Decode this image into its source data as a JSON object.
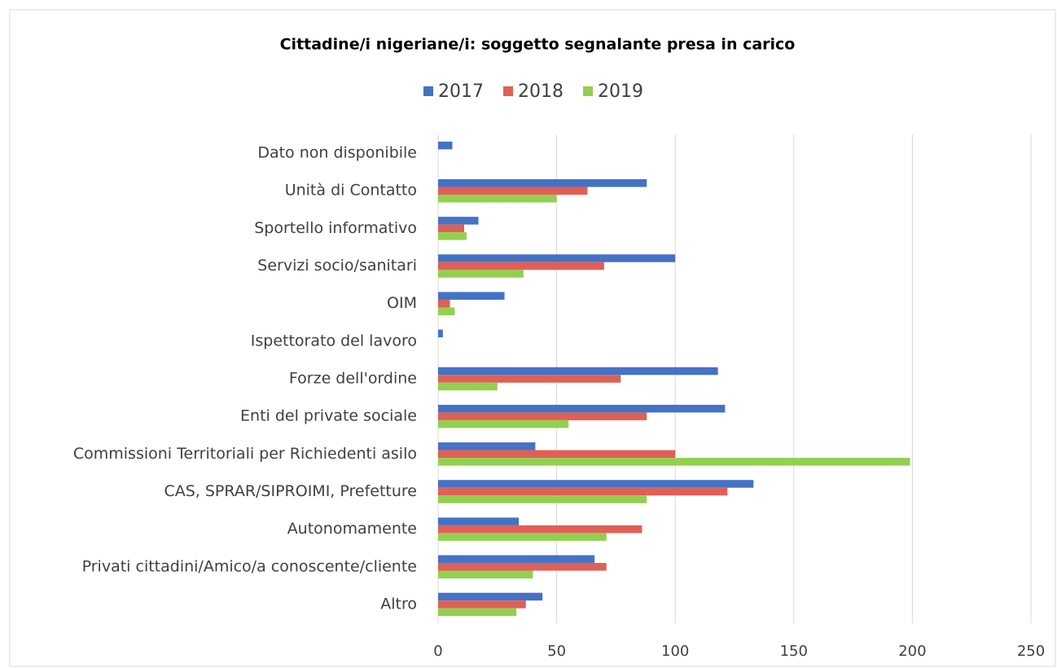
{
  "chart_data": {
    "type": "hbar",
    "title": "Cittadine/i nigeriane/i: soggetto segnalante presa in carico",
    "categories": [
      "Dato non disponibile",
      "Unità di Contatto",
      "Sportello informativo",
      "Servizi socio/sanitari",
      "OIM",
      "Ispettorato del lavoro",
      "Forze dell'ordine",
      "Enti del private sociale",
      "Commissioni Territoriali per Richiedenti asilo",
      "CAS, SPRAR/SIPROIMI, Prefetture",
      "Autonomamente",
      "Privati cittadini/Amico/a conoscente/cliente",
      "Altro"
    ],
    "series": [
      {
        "name": "2017",
        "color": "#4472c4",
        "values": [
          6,
          88,
          17,
          100,
          28,
          2,
          118,
          121,
          41,
          133,
          34,
          66,
          44
        ]
      },
      {
        "name": "2018",
        "color": "#e06055",
        "values": [
          0,
          63,
          11,
          70,
          5,
          0,
          77,
          88,
          100,
          122,
          86,
          71,
          37
        ]
      },
      {
        "name": "2019",
        "color": "#92d050",
        "values": [
          0,
          50,
          12,
          36,
          7,
          0,
          25,
          55,
          199,
          88,
          71,
          40,
          33
        ]
      }
    ],
    "xlim": [
      0,
      250
    ],
    "xticks": [
      0,
      50,
      100,
      150,
      200,
      250
    ],
    "grid": true,
    "legend": "top"
  }
}
